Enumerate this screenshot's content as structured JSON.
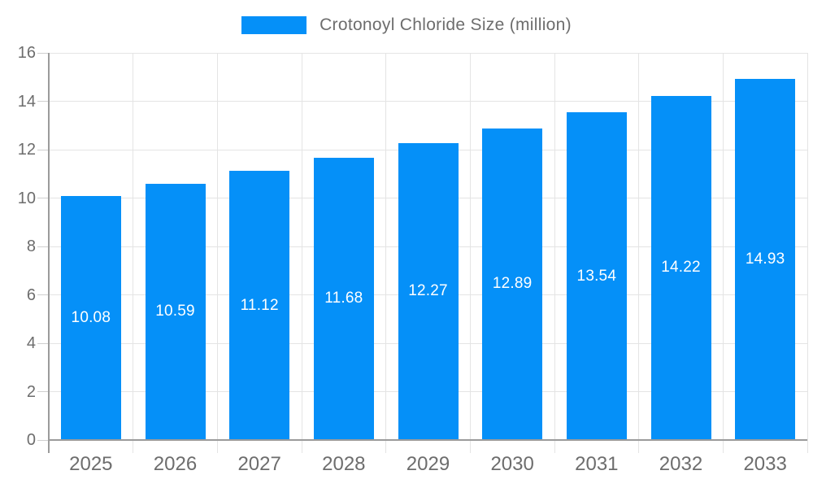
{
  "legend": {
    "label": "Crotonoyl Chloride Size (million)"
  },
  "chart_data": {
    "type": "bar",
    "title": "Crotonoyl Chloride Size (million)",
    "categories": [
      "2025",
      "2026",
      "2027",
      "2028",
      "2029",
      "2030",
      "2031",
      "2032",
      "2033"
    ],
    "values": [
      10.08,
      10.59,
      11.12,
      11.68,
      12.27,
      12.89,
      13.54,
      14.22,
      14.93
    ],
    "value_labels": [
      "10.08",
      "10.59",
      "11.12",
      "11.68",
      "12.27",
      "12.89",
      "13.54",
      "14.22",
      "14.93"
    ],
    "xlabel": "",
    "ylabel": "",
    "ylim": [
      0,
      16
    ],
    "yticks": [
      0,
      2,
      4,
      6,
      8,
      10,
      12,
      14,
      16
    ],
    "grid": true,
    "legend_position": "top",
    "colors": {
      "bar": "#0590f8",
      "grid": "#e4e4e4",
      "axis": "#9b9b9b",
      "tick": "#cfcfcf",
      "text": "#6d6d6d",
      "value_label": "#ffffff",
      "background": "#ffffff"
    }
  }
}
